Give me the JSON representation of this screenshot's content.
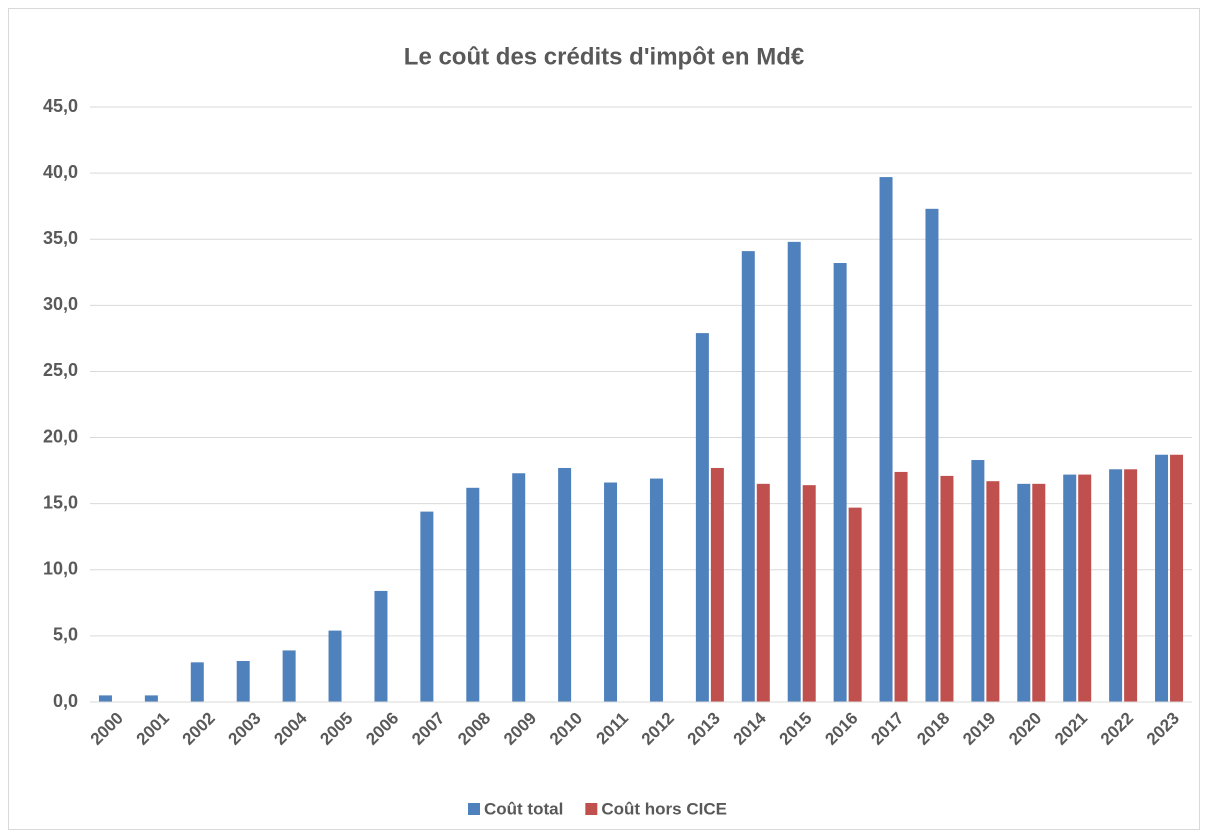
{
  "chart_data": {
    "type": "bar",
    "title": "Le coût des crédits d'impôt en Md€",
    "categories": [
      "2000",
      "2001",
      "2002",
      "2003",
      "2004",
      "2005",
      "2006",
      "2007",
      "2008",
      "2009",
      "2010",
      "2011",
      "2012",
      "2013",
      "2014",
      "2015",
      "2016",
      "2017",
      "2018",
      "2019",
      "2020",
      "2021",
      "2022",
      "2023"
    ],
    "series": [
      {
        "name": "Coût total",
        "color": "#4f81bd",
        "values": [
          0.5,
          0.5,
          3.0,
          3.1,
          3.9,
          5.4,
          8.4,
          14.4,
          16.2,
          17.3,
          17.7,
          16.6,
          16.9,
          27.9,
          34.1,
          34.8,
          33.2,
          39.7,
          37.3,
          18.3,
          16.5,
          17.2,
          17.6,
          18.7
        ]
      },
      {
        "name": "Coût hors CICE",
        "color": "#c0504d",
        "values": [
          null,
          null,
          null,
          null,
          null,
          null,
          null,
          null,
          null,
          null,
          null,
          null,
          null,
          17.7,
          16.5,
          16.4,
          14.7,
          17.4,
          17.1,
          16.7,
          16.5,
          17.2,
          17.6,
          18.7
        ]
      }
    ],
    "ylim": [
      0,
      45
    ],
    "yticks": [
      {
        "value": 0,
        "label": "0,0"
      },
      {
        "value": 5,
        "label": "5,0"
      },
      {
        "value": 10,
        "label": "10,0"
      },
      {
        "value": 15,
        "label": "15,0"
      },
      {
        "value": 20,
        "label": "20,0"
      },
      {
        "value": 25,
        "label": "25,0"
      },
      {
        "value": 30,
        "label": "30,0"
      },
      {
        "value": 35,
        "label": "35,0"
      },
      {
        "value": 40,
        "label": "40,0"
      },
      {
        "value": 45,
        "label": "45,0"
      }
    ],
    "grid": true,
    "legend": "bottom"
  }
}
